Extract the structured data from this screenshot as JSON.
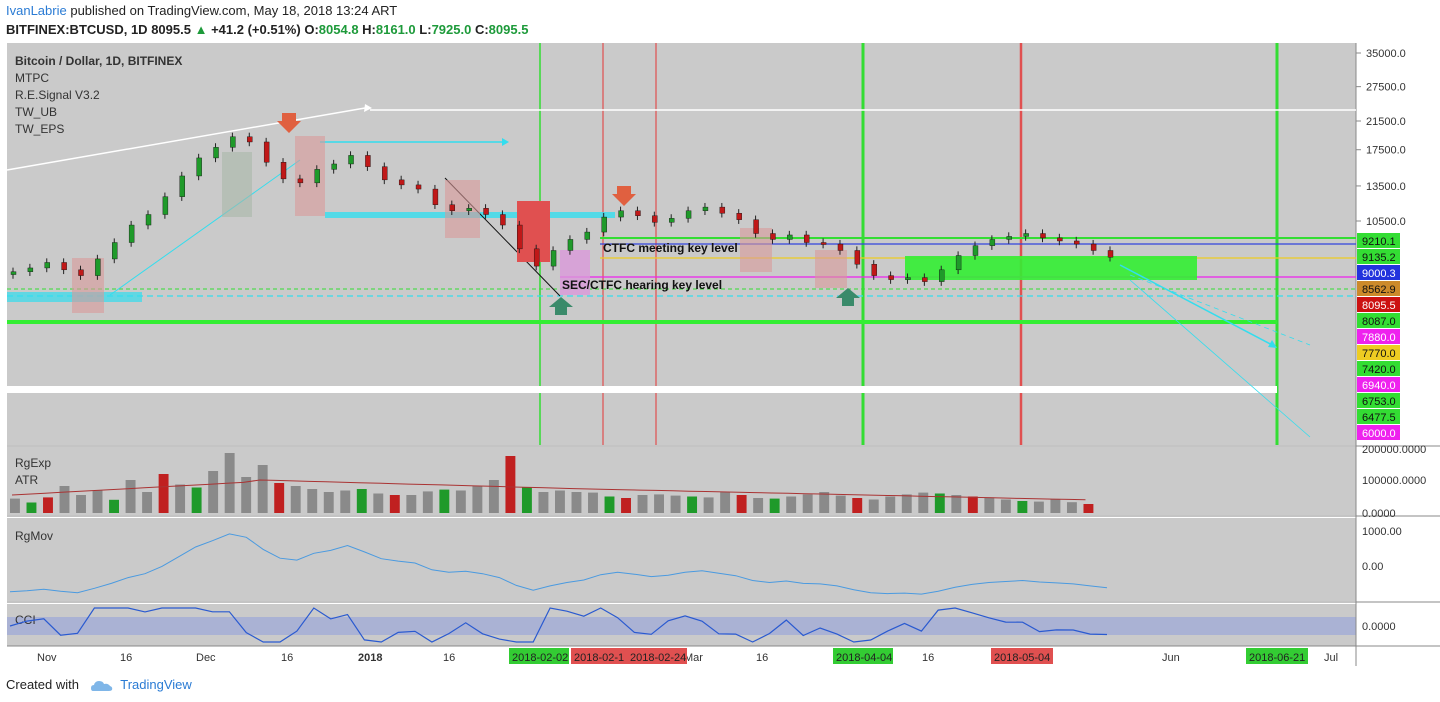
{
  "header": {
    "author": "IvanLabrie",
    "published_text": "published on TradingView.com, May 18, 2018 13:24 ART",
    "symbol": "BITFINEX:BTCUSD, 1D",
    "last": "8095.5",
    "change": "+41.2 (+0.51%)",
    "o_label": "O:",
    "o_value": "8054.8",
    "h_label": "H:",
    "h_value": "8161.0",
    "l_label": "L:",
    "l_value": "7925.0",
    "c_label": "C:",
    "c_value": "8095.5"
  },
  "legend": {
    "title": "Bitcoin / Dollar, 1D, BITFINEX",
    "indicators": [
      "MTPC",
      "R.E.Signal V3.2",
      "TW_UB",
      "TW_EPS"
    ]
  },
  "annotations": {
    "ctfc": "CTFC meeting key level",
    "sec": "SEC/CTFC hearing key level"
  },
  "panes": {
    "volume_labels": [
      "RgExp",
      "ATR"
    ],
    "mov_label": "RgMov",
    "cci_label": "CCI"
  },
  "footer": {
    "created_with": "Created with",
    "brand": "TradingView"
  },
  "chart_data": {
    "type": "candlestick",
    "price_axis": {
      "scale": "log",
      "ticks": [
        "35000.0",
        "27500.0",
        "21500.0",
        "17500.0",
        "13500.0",
        "10500.0"
      ],
      "level_labels": [
        {
          "text": "9210.1",
          "color": "#33dd33"
        },
        {
          "text": "9135.2",
          "color": "#33dd33"
        },
        {
          "text": "9000.3",
          "color": "#2233dd"
        },
        {
          "text": "8562.9",
          "color": "#cc8a2a"
        },
        {
          "text": "8095.5",
          "color": "#cc1111"
        },
        {
          "text": "8087.0",
          "color": "#33dd33"
        },
        {
          "text": "7880.0",
          "color": "#ee22ee"
        },
        {
          "text": "7770.0",
          "color": "#eecc22"
        },
        {
          "text": "7420.0",
          "color": "#33dd33"
        },
        {
          "text": "6940.0",
          "color": "#ee22ee"
        },
        {
          "text": "6753.0",
          "color": "#33dd33"
        },
        {
          "text": "6477.5",
          "color": "#33dd33"
        },
        {
          "text": "6000.0",
          "color": "#ee22ee"
        }
      ]
    },
    "volume_axis": [
      "200000.0000",
      "100000.0000",
      "0.0000"
    ],
    "mov_axis": [
      "1000.00",
      "0.00"
    ],
    "cci_axis": [
      "0.0000"
    ],
    "time_axis": {
      "ticks": [
        "Nov",
        "16",
        "Dec",
        "16",
        "2018",
        "16",
        "Mar",
        "16",
        "16",
        "Jun",
        "Jul"
      ],
      "highlighted": [
        {
          "text": "2018-02-02",
          "color": "#33cc33"
        },
        {
          "text": "2018-02-1",
          "color": "#e05050"
        },
        {
          "text": "2018-02-24",
          "color": "#e05050"
        },
        {
          "text": "2018-04-04",
          "color": "#33cc33"
        },
        {
          "text": "2018-05-04",
          "color": "#e05050"
        },
        {
          "text": "2018-06-21",
          "color": "#33cc33"
        }
      ]
    },
    "close_path": [
      7300,
      7500,
      7800,
      7400,
      7100,
      8000,
      9000,
      10200,
      11000,
      12500,
      14500,
      16500,
      17800,
      19200,
      18500,
      16000,
      14200,
      13800,
      15200,
      15800,
      16800,
      15500,
      14100,
      13600,
      13200,
      11800,
      11300,
      11500,
      11000,
      10200,
      8600,
      7600,
      8500,
      9200,
      9700,
      10800,
      11300,
      10900,
      10400,
      10700,
      11300,
      11600,
      11100,
      10600,
      9600,
      9200,
      9500,
      9000,
      8900,
      8500,
      7700,
      7100,
      6900,
      7000,
      6800,
      7400,
      8200,
      8800,
      9200,
      9400,
      9600,
      9300,
      9100,
      8900,
      8500,
      8100
    ],
    "volume_series": [
      48000,
      35000,
      52000,
      90000,
      60000,
      75000,
      44000,
      110000,
      70000,
      130000,
      95000,
      85000,
      140000,
      200000,
      120000,
      160000,
      100000,
      90000,
      80000,
      70000,
      75000,
      80000,
      65000,
      60000,
      60000,
      72000,
      78000,
      75000,
      90000,
      110000,
      190000,
      85000,
      70000,
      75000,
      70000,
      68000,
      55000,
      50000,
      60000,
      62000,
      58000,
      55000,
      52000,
      70000,
      60000,
      50000,
      48000,
      55000,
      62000,
      70000,
      58000,
      50000,
      45000,
      55000,
      62000,
      68000,
      65000,
      60000,
      55000,
      52000,
      45000,
      40000,
      38000,
      45000,
      36000,
      30000
    ]
  }
}
